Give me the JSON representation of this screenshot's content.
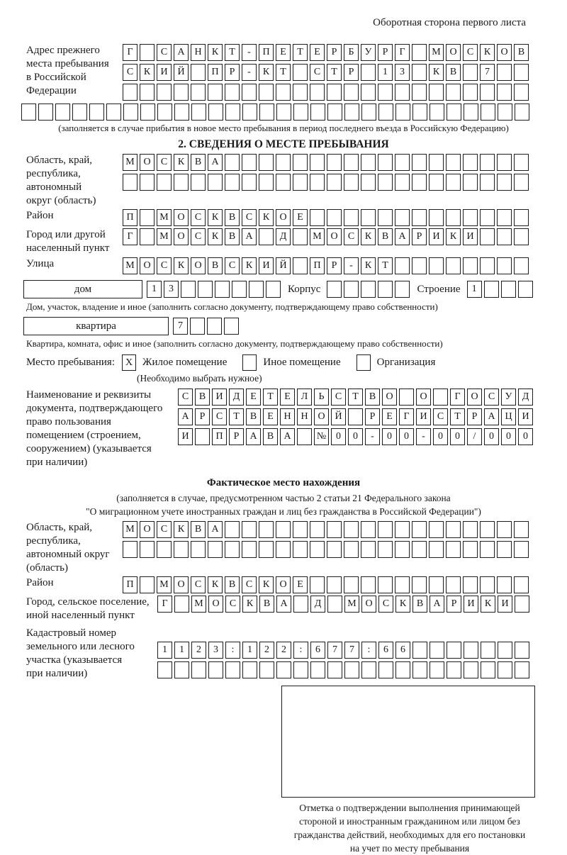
{
  "page": {
    "top_note": "Оборотная сторона первого листа"
  },
  "prev_address": {
    "label_lines": [
      "Адрес прежнего",
      "места пребывания",
      "в Российской",
      "Федерации"
    ],
    "row1": "Г САНКТ-ПЕТЕРБУРГ МОСКОВ",
    "row2": "СКИЙ ПР-КТ СТР 13 КВ 7",
    "row3": "",
    "row4": "",
    "note": "(заполняется в случае прибытия в новое место пребывания в период последнего въезда в Российскую Федерацию)"
  },
  "section2": {
    "title": "2. СВЕДЕНИЯ О МЕСТЕ ПРЕБЫВАНИЯ"
  },
  "stay_place": {
    "region": {
      "label_lines": [
        "Область, край,",
        "республика,",
        "автономный",
        "округ (область)"
      ],
      "row1": "МОСКВА",
      "row2": ""
    },
    "district": {
      "label": "Район",
      "row": "П МОСКВСКОЕ"
    },
    "city": {
      "label_lines": [
        "Город или другой",
        "населенный пункт"
      ],
      "row": "Г МОСКВА Д МОСКВАРИКИ"
    },
    "street": {
      "label": "Улица",
      "row": "МОСКОВСКИЙ ПР-КТ"
    },
    "house": {
      "box_label": "дом",
      "cells": "13",
      "korpus_label": "Корпус",
      "korpus_cells": "",
      "stroenie_label": "Строение",
      "stroenie_cells": "1",
      "note": "Дом, участок, владение и иное (заполнить согласно документу, подтверждающему право собственности)"
    },
    "apartment": {
      "box_label": "квартира",
      "cells": "7",
      "note": "Квартира, комната, офис и иное (заполнить согласно документу, подтверждающему право собственности)"
    },
    "stay_type": {
      "label": "Место пребывания:",
      "options": [
        {
          "mark": "X",
          "label": "Жилое помещение"
        },
        {
          "mark": "",
          "label": "Иное помещение"
        },
        {
          "mark": "",
          "label": "Организация"
        }
      ],
      "note": "(Необходимо выбрать нужное)"
    },
    "doc_basis": {
      "label_lines": [
        "Наименование и реквизиты",
        "документа, подтверждающего",
        "право пользования",
        "помещением (строением,",
        "сооружением) (указывается",
        "при наличии)"
      ],
      "row1": "СВИДЕТЕЛЬСТВО О ГОСУД",
      "row2": "АРСТВЕННОЙ РЕГИСТРАЦИ",
      "row3": "И ПРАВА №00-00-00/000"
    }
  },
  "actual_location": {
    "title": "Фактическое место нахождения",
    "note_lines": [
      "(заполняется в случае, предусмотренном частью 2 статьи 21 Федерального закона",
      "\"О миграционном учете иностранных граждан и лиц без гражданства в Российской Федерации\")"
    ],
    "region": {
      "label_lines": [
        "Область, край,",
        "республика,",
        "автономный округ",
        "(область)"
      ],
      "row1": "МОСКВА",
      "row2": ""
    },
    "district": {
      "label": "Район",
      "row": "П МОСКВСКОЕ"
    },
    "city": {
      "label_lines": [
        "Город, сельское поселение,",
        "иной населенный пункт"
      ],
      "row": "Г МОСКВА Д МОСКВАРИКИ"
    },
    "cadastral": {
      "label_lines": [
        "Кадастровый номер",
        "земельного или лесного",
        "участка (указывается",
        "при наличии)"
      ],
      "row1": "1123:122:677:66",
      "row2": ""
    }
  },
  "confirmation": {
    "caption_lines": [
      "Отметка о подтверждении выполнения принимающей",
      "стороной и иностранным гражданином или лицом без",
      "гражданства действий, необходимых для его постановки",
      "на учет по месту пребывания"
    ]
  },
  "colors": {
    "ink": "#1a1a1a",
    "paper": "#ffffff"
  }
}
